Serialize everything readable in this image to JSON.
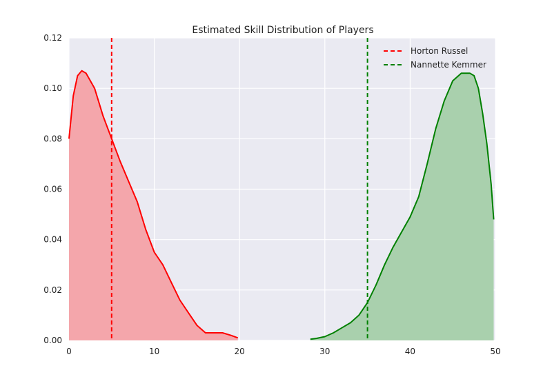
{
  "chart_data": {
    "type": "area",
    "title": "Estimated Skill Distribution of Players",
    "xlabel": "",
    "ylabel": "",
    "xlim": [
      0,
      50
    ],
    "ylim": [
      0,
      0.12
    ],
    "xticks": [
      0,
      10,
      20,
      30,
      40,
      50
    ],
    "xtick_labels": [
      "0",
      "10",
      "20",
      "30",
      "40",
      "50"
    ],
    "yticks": [
      0.0,
      0.02,
      0.04,
      0.06,
      0.08,
      0.1,
      0.12
    ],
    "ytick_labels": [
      "0.00",
      "0.02",
      "0.04",
      "0.06",
      "0.08",
      "0.10",
      "0.12"
    ],
    "grid": true,
    "legend_position": "top-right",
    "series": [
      {
        "color": "#ff0000",
        "fill_color": "#f4a6ab",
        "x": [
          0,
          0.5,
          1,
          1.5,
          2,
          3,
          4,
          5,
          6,
          7,
          8,
          9,
          10,
          11,
          12,
          13,
          14,
          15,
          16,
          17,
          18,
          19,
          19.8
        ],
        "y": [
          0.08,
          0.097,
          0.105,
          0.107,
          0.106,
          0.1,
          0.089,
          0.08,
          0.071,
          0.063,
          0.055,
          0.044,
          0.035,
          0.03,
          0.023,
          0.016,
          0.011,
          0.006,
          0.003,
          0.003,
          0.003,
          0.002,
          0.001
        ]
      },
      {
        "color": "#008000",
        "fill_color": "#a9d0ad",
        "x": [
          28.3,
          29,
          30,
          31,
          32,
          33,
          34,
          35,
          36,
          37,
          38,
          39,
          40,
          41,
          42,
          43,
          44,
          45,
          46,
          47,
          47.5,
          48,
          48.5,
          49,
          49.5,
          49.8
        ],
        "y": [
          0.0005,
          0.0008,
          0.0015,
          0.003,
          0.005,
          0.007,
          0.01,
          0.015,
          0.022,
          0.03,
          0.037,
          0.043,
          0.049,
          0.057,
          0.07,
          0.084,
          0.095,
          0.103,
          0.106,
          0.106,
          0.105,
          0.1,
          0.09,
          0.078,
          0.062,
          0.048
        ]
      }
    ],
    "vlines": [
      {
        "x": 5,
        "color": "#ff0000",
        "name": "Horton Russel"
      },
      {
        "x": 35,
        "color": "#008000",
        "name": "Nannette Kemmer"
      }
    ],
    "legend": [
      {
        "label": "Horton Russel",
        "color": "#ff0000"
      },
      {
        "label": "Nannette Kemmer",
        "color": "#008000"
      }
    ]
  }
}
